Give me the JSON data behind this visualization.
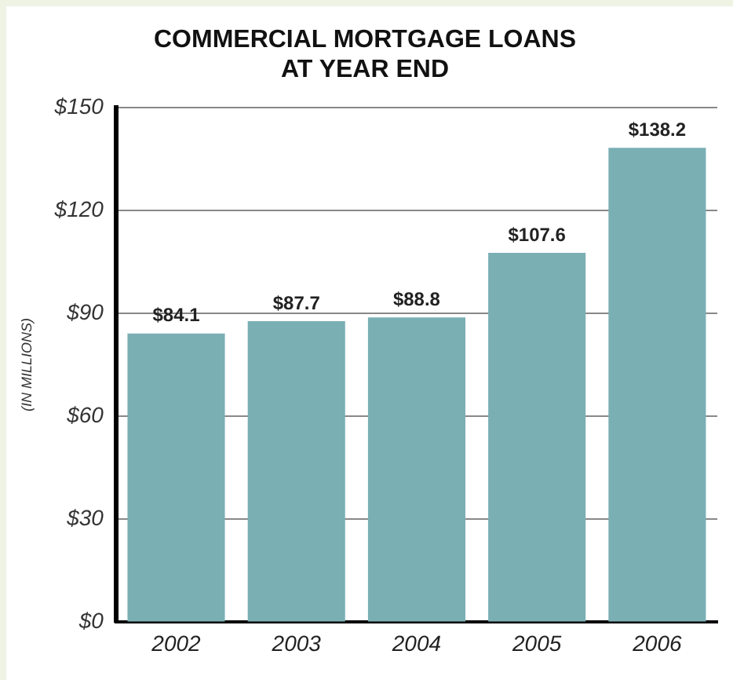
{
  "chart_data": {
    "type": "bar",
    "title": [
      "COMMERCIAL MORTGAGE LOANS",
      "AT YEAR END"
    ],
    "ylabel": "(IN MILLIONS)",
    "categories": [
      "2002",
      "2003",
      "2004",
      "2005",
      "2006"
    ],
    "values": [
      84.1,
      87.7,
      88.8,
      107.6,
      138.2
    ],
    "value_labels": [
      "$84.1",
      "$87.7",
      "$88.8",
      "$107.6",
      "$138.2"
    ],
    "color": "#7aafb4",
    "ylim": [
      0,
      150
    ],
    "yticks": [
      {
        "value": 0,
        "label": "$0"
      },
      {
        "value": 30,
        "label": "$30"
      },
      {
        "value": 60,
        "label": "$60"
      },
      {
        "value": 90,
        "label": "$90"
      },
      {
        "value": 120,
        "label": "$120"
      },
      {
        "value": 150,
        "label": "$150"
      }
    ],
    "grid": "y",
    "legend": false
  }
}
